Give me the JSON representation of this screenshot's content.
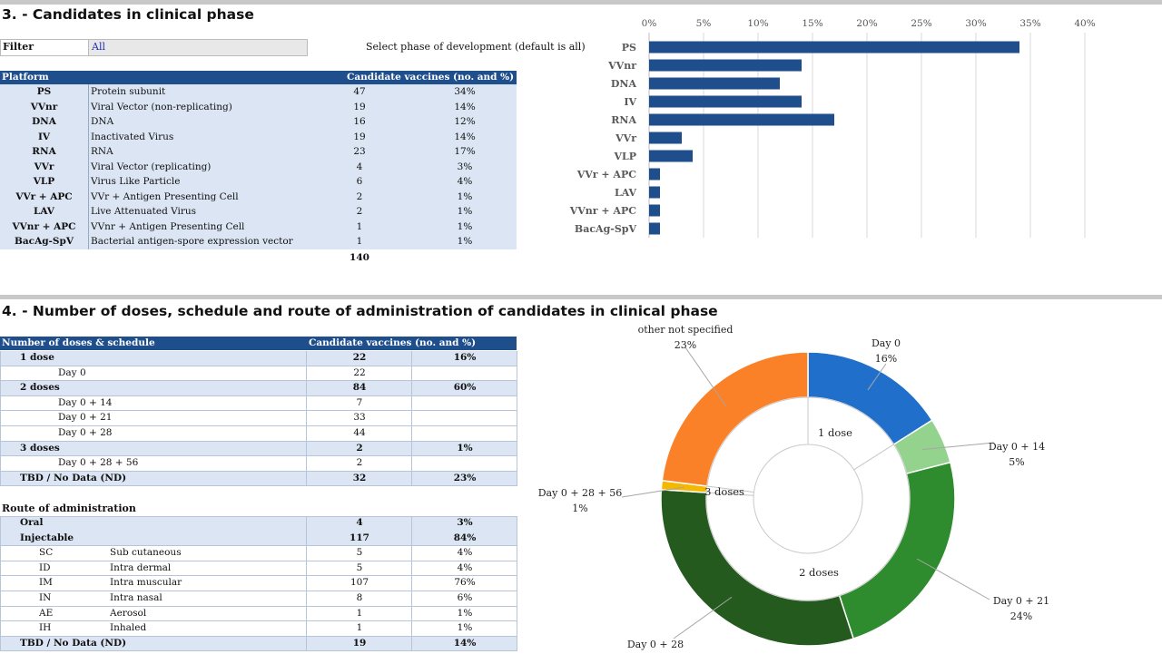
{
  "section3": {
    "title": "3. -  Candidates in clinical phase",
    "filter_label": "Filter",
    "filter_value": "All",
    "filter_hint": "Select phase of development (default is all)",
    "table": {
      "headers": [
        "Platform",
        "Candidate vaccines (no. and %)"
      ],
      "rows": [
        {
          "code": "PS",
          "name": "Protein subunit",
          "count": "47",
          "pct": "34%"
        },
        {
          "code": "VVnr",
          "name": "Viral Vector (non-replicating)",
          "count": "19",
          "pct": "14%"
        },
        {
          "code": "DNA",
          "name": "DNA",
          "count": "16",
          "pct": "12%"
        },
        {
          "code": "IV",
          "name": "Inactivated Virus",
          "count": "19",
          "pct": "14%"
        },
        {
          "code": "RNA",
          "name": "RNA",
          "count": "23",
          "pct": "17%"
        },
        {
          "code": "VVr",
          "name": "Viral Vector (replicating)",
          "count": "4",
          "pct": "3%"
        },
        {
          "code": "VLP",
          "name": "Virus Like Particle",
          "count": "6",
          "pct": "4%"
        },
        {
          "code": "VVr + APC",
          "name": "VVr + Antigen Presenting Cell",
          "count": "2",
          "pct": "1%"
        },
        {
          "code": "LAV",
          "name": "Live Attenuated Virus",
          "count": "2",
          "pct": "1%"
        },
        {
          "code": "VVnr + APC",
          "name": "VVnr + Antigen Presenting Cell",
          "count": "1",
          "pct": "1%"
        },
        {
          "code": "BacAg-SpV",
          "name": "Bacterial antigen-spore expression vector",
          "count": "1",
          "pct": "1%"
        }
      ],
      "total": "140"
    }
  },
  "section4": {
    "title": "4. -  Number of doses, schedule and route of administration of candidates in clinical phase",
    "doses_table": {
      "headers": [
        "Number of doses & schedule",
        "Candidate vaccines (no. and %)"
      ],
      "rows": [
        {
          "label": "1 dose",
          "count": "22",
          "pct": "16%",
          "group": true
        },
        {
          "label": "Day 0",
          "count": "22",
          "pct": "",
          "group": false
        },
        {
          "label": "2 doses",
          "count": "84",
          "pct": "60%",
          "group": true
        },
        {
          "label": "Day 0 + 14",
          "count": "7",
          "pct": "",
          "group": false
        },
        {
          "label": "Day 0 + 21",
          "count": "33",
          "pct": "",
          "group": false
        },
        {
          "label": "Day 0 + 28",
          "count": "44",
          "pct": "",
          "group": false
        },
        {
          "label": "3 doses",
          "count": "2",
          "pct": "1%",
          "group": true
        },
        {
          "label": "Day 0 + 28 + 56",
          "count": "2",
          "pct": "",
          "group": false
        },
        {
          "label": "TBD / No Data (ND)",
          "count": "32",
          "pct": "23%",
          "group": true
        }
      ]
    },
    "route_title": "Route of administration",
    "route_table": {
      "rows": [
        {
          "code": "Oral",
          "name": "",
          "count": "4",
          "pct": "3%",
          "group": true
        },
        {
          "code": "Injectable",
          "name": "",
          "count": "117",
          "pct": "84%",
          "group": true
        },
        {
          "code": "SC",
          "name": "Sub cutaneous",
          "count": "5",
          "pct": "4%",
          "group": false
        },
        {
          "code": "ID",
          "name": "Intra dermal",
          "count": "5",
          "pct": "4%",
          "group": false
        },
        {
          "code": "IM",
          "name": "Intra muscular",
          "count": "107",
          "pct": "76%",
          "group": false
        },
        {
          "code": "IN",
          "name": "Intra nasal",
          "count": "8",
          "pct": "6%",
          "group": false
        },
        {
          "code": "AE",
          "name": "Aerosol",
          "count": "1",
          "pct": "1%",
          "group": false
        },
        {
          "code": "IH",
          "name": "Inhaled",
          "count": "1",
          "pct": "1%",
          "group": false
        },
        {
          "code": "TBD / No Data (ND)",
          "name": "",
          "count": "19",
          "pct": "14%",
          "group": true
        }
      ]
    }
  },
  "chart_data": [
    {
      "type": "bar",
      "orientation": "horizontal",
      "title": "",
      "categories": [
        "PS",
        "VVnr",
        "DNA",
        "IV",
        "RNA",
        "VVr",
        "VLP",
        "VVr + APC",
        "LAV",
        "VVnr + APC",
        "BacAg-SpV"
      ],
      "values": [
        34,
        14,
        12,
        14,
        17,
        3,
        4,
        1,
        1,
        1,
        1
      ],
      "xlim": [
        0,
        40
      ],
      "xticks": [
        "0%",
        "5%",
        "10%",
        "15%",
        "20%",
        "25%",
        "30%",
        "35%",
        "40%"
      ],
      "xtick_values": [
        0,
        5,
        10,
        15,
        20,
        25,
        30,
        35,
        40
      ],
      "bar_color": "#1f4e8c",
      "grid": true
    },
    {
      "type": "pie",
      "style": "donut",
      "outer_ring": [
        {
          "label": "Day 0",
          "pct_label": "16%",
          "value": 16,
          "color": "#1f6fcb"
        },
        {
          "label": "Day 0 + 14",
          "pct_label": "5%",
          "value": 5,
          "color": "#93d38e"
        },
        {
          "label": "Day 0 + 21",
          "pct_label": "24%",
          "value": 24,
          "color": "#2e8b2e"
        },
        {
          "label": "Day 0 + 28",
          "pct_label": "",
          "value": 31,
          "color": "#245a1e"
        },
        {
          "label": "Day 0 + 28 + 56",
          "pct_label": "1%",
          "value": 1,
          "color": "#f5b800"
        },
        {
          "label": "other not specified",
          "pct_label": "23%",
          "value": 23,
          "color": "#fb8128"
        }
      ],
      "inner_ring": [
        {
          "label": "1 dose",
          "value": 16
        },
        {
          "label": "2 doses",
          "value": 60
        },
        {
          "label": "3 doses",
          "value": 1
        },
        {
          "label": "",
          "value": 23
        }
      ]
    }
  ]
}
